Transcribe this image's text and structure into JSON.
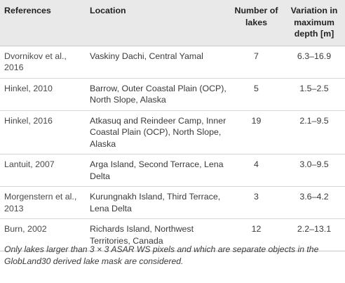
{
  "table": {
    "headers": {
      "references": "References",
      "location": "Location",
      "number_of_lakes": "Number of lakes",
      "variation": "Variation in maximum depth [m]"
    },
    "rows": [
      {
        "ref": "Dvornikov et al., 2016",
        "location": "Vaskiny Dachi, Central Yamal",
        "lakes": "7",
        "depth": "6.3–16.9"
      },
      {
        "ref": "Hinkel, 2010",
        "location": "Barrow, Outer Coastal Plain (OCP), North Slope, Alaska",
        "lakes": "5",
        "depth": "1.5–2.5"
      },
      {
        "ref": "Hinkel, 2016",
        "location": "Atkasuq and Reindeer Camp, Inner Coastal Plain (OCP), North Slope, Alaska",
        "lakes": "19",
        "depth": "2.1–9.5"
      },
      {
        "ref": "Lantuit, 2007",
        "location": "Arga Island, Second Terrace, Lena Delta",
        "lakes": "4",
        "depth": "3.0–9.5"
      },
      {
        "ref": "Morgenstern et al., 2013",
        "location": "Kurungnakh Island, Third Terrace, Lena Delta",
        "lakes": "3",
        "depth": "3.6–4.2"
      },
      {
        "ref": "Burn, 2002",
        "location": "Richards Island, Northwest Territories, Canada",
        "lakes": "12",
        "depth": "2.2–13.1"
      }
    ]
  },
  "footnote": "Only lakes larger than 3 × 3 ASAR WS pixels and which are separate objects in the GlobLand30 derived lake mask are considered."
}
